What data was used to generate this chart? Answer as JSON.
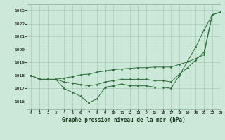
{
  "title": "Graphe pression niveau de la mer (hPa)",
  "background_color": "#cce8d8",
  "grid_color": "#aaccb8",
  "line_color": "#2d6e3a",
  "xlim": [
    -0.5,
    23
  ],
  "ylim": [
    1015.4,
    1023.5
  ],
  "yticks": [
    1016,
    1017,
    1018,
    1019,
    1020,
    1021,
    1022,
    1023
  ],
  "xticks": [
    0,
    1,
    2,
    3,
    4,
    5,
    6,
    7,
    8,
    9,
    10,
    11,
    12,
    13,
    14,
    15,
    16,
    17,
    18,
    19,
    20,
    21,
    22,
    23
  ],
  "series": [
    [
      1018.0,
      1017.7,
      1017.7,
      1017.7,
      1017.0,
      1016.7,
      1016.4,
      1015.9,
      1016.2,
      1017.1,
      1017.2,
      1017.35,
      1017.2,
      1017.2,
      1017.2,
      1017.1,
      1017.1,
      1017.0,
      1018.0,
      1019.1,
      1020.2,
      1021.5,
      1022.7,
      1022.9
    ],
    [
      1018.0,
      1017.7,
      1017.7,
      1017.7,
      1017.5,
      1017.4,
      1017.3,
      1017.2,
      1017.3,
      1017.5,
      1017.6,
      1017.7,
      1017.7,
      1017.7,
      1017.7,
      1017.6,
      1017.6,
      1017.5,
      1018.1,
      1018.6,
      1019.2,
      1019.8,
      1022.7,
      1022.9
    ],
    [
      1018.0,
      1017.7,
      1017.7,
      1017.7,
      1017.8,
      1017.9,
      1018.05,
      1018.1,
      1018.25,
      1018.35,
      1018.45,
      1018.5,
      1018.55,
      1018.6,
      1018.6,
      1018.65,
      1018.65,
      1018.65,
      1018.85,
      1019.05,
      1019.3,
      1019.6,
      1022.7,
      1022.9
    ]
  ]
}
